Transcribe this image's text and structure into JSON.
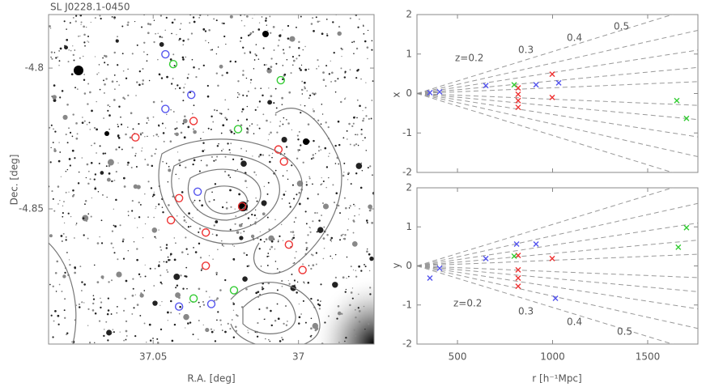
{
  "chart_data": [
    {
      "type": "image",
      "title": "SL J0228.1-0450",
      "x_label": "R.A. [deg]",
      "y_label": "Dec. [deg]",
      "xlim": [
        37.086,
        36.974
      ],
      "ylim": [
        -4.898,
        -4.781
      ],
      "xticks": [
        37.05,
        37
      ],
      "yticks": [
        -4.8,
        -4.85
      ],
      "marker": "circle",
      "series": [
        {
          "color": "#5555ee",
          "x": [
            37.0458,
            37.0369,
            37.0458,
            37.0347,
            37.0411,
            37.03
          ],
          "values": [
            -4.7951,
            -4.8095,
            -4.8145,
            -4.8439,
            -4.8847,
            -4.8838
          ]
        },
        {
          "color": "#33cc33",
          "x": [
            37.0431,
            37.0061,
            37.0208,
            37.0361,
            37.0222
          ],
          "values": [
            -4.7986,
            -4.8043,
            -4.8217,
            -4.8818,
            -4.8789
          ]
        },
        {
          "color": "#ee3333",
          "x": [
            37.0561,
            37.0361,
            37.0069,
            37.005,
            37.0411,
            37.0439,
            37.0319,
            37.0033,
            37.0319,
            36.9986,
            37.0194
          ],
          "values": [
            -4.8246,
            -4.8188,
            -4.8289,
            -4.8332,
            -4.8462,
            -4.854,
            -4.8584,
            -4.8627,
            -4.8702,
            -4.8717,
            -4.8491
          ]
        }
      ]
    },
    {
      "type": "scatter",
      "y_label": "x",
      "xlim": [
        287,
        1764
      ],
      "ylim": [
        -2,
        2
      ],
      "xticks": [
        500,
        1000,
        1500
      ],
      "yticks": [
        -2,
        -1,
        0,
        1,
        2
      ],
      "marker": "x",
      "annotations": [
        "z=0.2",
        "0.3",
        "0.4",
        "0.5"
      ],
      "series": [
        {
          "color": "#5555ee",
          "x": [
            355,
            406,
            649,
            913,
            1032
          ],
          "values": [
            0.02,
            0.04,
            0.2,
            0.22,
            0.27
          ]
        },
        {
          "color": "#ee3333",
          "x": [
            998,
            998,
            819,
            819,
            819,
            819
          ],
          "values": [
            0.49,
            -0.1,
            0.14,
            -0.02,
            -0.18,
            -0.35
          ]
        },
        {
          "color": "#33cc33",
          "x": [
            1653,
            1704,
            798
          ],
          "values": [
            -0.18,
            -0.63,
            0.22
          ]
        }
      ]
    },
    {
      "type": "scatter",
      "y_label": "y",
      "x_label": "r [h⁻¹Mpc]",
      "xlim": [
        287,
        1764
      ],
      "ylim": [
        -2,
        2
      ],
      "xticks": [
        500,
        1000,
        1500
      ],
      "yticks": [
        -2,
        -1,
        0,
        1,
        2
      ],
      "marker": "x",
      "annotations": [
        "z=0.2",
        "0.3",
        "0.4",
        "0.5"
      ],
      "series": [
        {
          "color": "#5555ee",
          "x": [
            355,
            406,
            649,
            913,
            811,
            1015
          ],
          "values": [
            -0.31,
            -0.06,
            0.19,
            0.56,
            0.56,
            -0.83
          ]
        },
        {
          "color": "#ee3333",
          "x": [
            998,
            819,
            819,
            819,
            819
          ],
          "values": [
            0.19,
            0.27,
            -0.1,
            -0.31,
            -0.52
          ]
        },
        {
          "color": "#33cc33",
          "x": [
            1704,
            1661,
            798
          ],
          "values": [
            0.98,
            0.48,
            0.25
          ]
        }
      ]
    }
  ]
}
